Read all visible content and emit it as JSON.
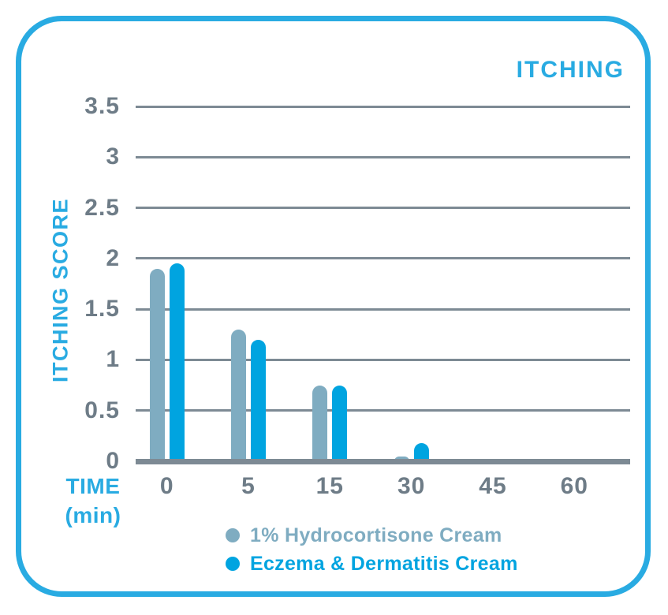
{
  "chart": {
    "title": "ITCHING",
    "y_axis_label": "ITCHING SCORE",
    "x_axis_label_line1": "TIME",
    "x_axis_label_line2": "(min)"
  },
  "colors": {
    "accent": "#29ABE2",
    "bar_blue": "#00A4E0",
    "bar_gray": "#7FACC1",
    "tick_text": "#6E7C87",
    "grid_line": "#7D8A94"
  },
  "chart_data": {
    "type": "bar",
    "title": "ITCHING",
    "xlabel": "TIME (min)",
    "ylabel": "ITCHING SCORE",
    "categories": [
      "0",
      "5",
      "15",
      "30",
      "45",
      "60"
    ],
    "series": [
      {
        "name": "1% Hydrocortisone Cream",
        "color": "#7FACC1",
        "values": [
          1.9,
          1.3,
          0.75,
          0.05,
          0,
          0
        ]
      },
      {
        "name": "Eczema & Dermatitis Cream",
        "color": "#00A4E0",
        "values": [
          1.95,
          1.2,
          0.75,
          0.18,
          0,
          0
        ]
      }
    ],
    "ylim": [
      0,
      3.5
    ],
    "yticks": [
      3.5,
      3,
      2.5,
      2,
      1.5,
      1,
      0.5,
      0
    ],
    "grid": true,
    "legend_position": "bottom"
  }
}
